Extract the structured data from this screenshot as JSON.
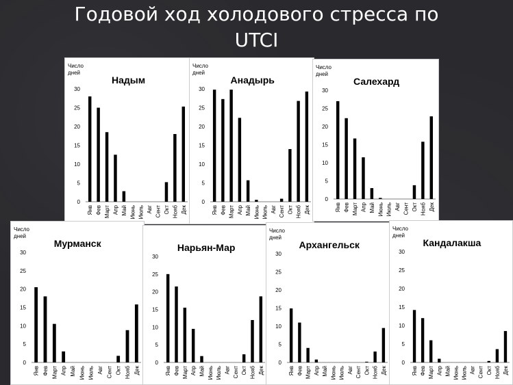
{
  "slide": {
    "title_line1": "Годовой ход холодового стресса по",
    "title_line2": "UTCI"
  },
  "chart_data": [
    {
      "type": "bar",
      "title": "Надым",
      "ylabel": "Число дней",
      "ylim": [
        0,
        30
      ],
      "yticks": [
        0,
        5,
        10,
        15,
        20,
        25,
        30
      ],
      "categories": [
        "Янв",
        "Фев",
        "Март",
        "Апр",
        "Май",
        "Июнь",
        "Июль",
        "Авг",
        "Сент",
        "Окт",
        "Нояб",
        "Дек"
      ],
      "values": [
        28,
        25,
        18.5,
        12.5,
        2.8,
        0,
        0,
        0,
        0,
        5.2,
        18,
        25.3
      ]
    },
    {
      "type": "bar",
      "title": "Анадырь",
      "ylabel": "Число дней",
      "ylim": [
        0,
        30
      ],
      "yticks": [
        0,
        5,
        10,
        15,
        20,
        25,
        30
      ],
      "categories": [
        "Янв",
        "Фев",
        "Март",
        "Апр",
        "Май",
        "Июнь",
        "Июль",
        "Авг",
        "Сент",
        "Окт",
        "Нояб",
        "Дек"
      ],
      "values": [
        29.8,
        27.3,
        29.8,
        22.3,
        5.7,
        0.5,
        0,
        0,
        0.8,
        14,
        26.8,
        29.3
      ]
    },
    {
      "type": "bar",
      "title": "Салехард",
      "ylabel": "Число дней",
      "ylim": [
        0,
        30
      ],
      "yticks": [
        0,
        5,
        10,
        15,
        20,
        25,
        30
      ],
      "categories": [
        "Янв",
        "Фев",
        "Март",
        "Апр",
        "Май",
        "Июнь",
        "Июль",
        "Авг",
        "Сент",
        "Окт",
        "Нояб",
        "Дек"
      ],
      "values": [
        27,
        22.3,
        16.7,
        11.5,
        3,
        0.3,
        0,
        0,
        0,
        3.8,
        15.8,
        22.8
      ]
    },
    {
      "type": "bar",
      "title": "Мурманск",
      "ylabel": "Число дней",
      "ylim": [
        0,
        30
      ],
      "yticks": [
        0,
        5,
        10,
        15,
        20,
        25,
        30
      ],
      "categories": [
        "Янв",
        "Фев",
        "Март",
        "Апр",
        "Май",
        "Июнь",
        "Июль",
        "Авг",
        "Сент",
        "Окт",
        "Нояб",
        "Дек"
      ],
      "values": [
        20.5,
        18,
        10.5,
        3,
        0,
        0,
        0,
        0,
        0,
        1.8,
        8.8,
        15.8
      ]
    },
    {
      "type": "bar",
      "title": "Нарьян-Мар",
      "ylabel": "",
      "ylim": [
        0,
        30
      ],
      "yticks": [
        0,
        5,
        10,
        15,
        20,
        25,
        30
      ],
      "categories": [
        "Янв",
        "Фев",
        "Март",
        "Апр",
        "Май",
        "Июнь",
        "Июль",
        "Авг",
        "Сент",
        "Окт",
        "Нояб",
        "Дек"
      ],
      "values": [
        25,
        21.5,
        15.5,
        9.5,
        1.8,
        0,
        0,
        0,
        0,
        2.3,
        12,
        18.7
      ]
    },
    {
      "type": "bar",
      "title": "Архангельск",
      "ylabel": "Число дней",
      "ylim": [
        0,
        30
      ],
      "yticks": [
        0,
        5,
        10,
        15,
        20,
        25,
        30
      ],
      "categories": [
        "Янв",
        "Фев",
        "Март",
        "Апр",
        "Май",
        "Июнь",
        "Июль",
        "Авг",
        "Сент",
        "Окт",
        "Нояб",
        "Дек"
      ],
      "values": [
        14.9,
        11,
        4,
        0.8,
        0,
        0,
        0,
        0,
        0,
        0.2,
        3,
        9.5
      ]
    },
    {
      "type": "bar",
      "title": "Кандалакша",
      "ylabel": "Число дней",
      "ylim": [
        0,
        30
      ],
      "yticks": [
        0,
        5,
        10,
        15,
        20,
        25,
        30
      ],
      "categories": [
        "Янв",
        "Фев",
        "Март",
        "Апр",
        "Май",
        "Июнь",
        "Июль",
        "Авг",
        "Сент",
        "Окт",
        "Нояб",
        "Дек"
      ],
      "values": [
        14.2,
        12,
        6,
        1,
        0,
        0,
        0,
        0,
        0,
        0.4,
        3.6,
        8.5
      ]
    }
  ]
}
